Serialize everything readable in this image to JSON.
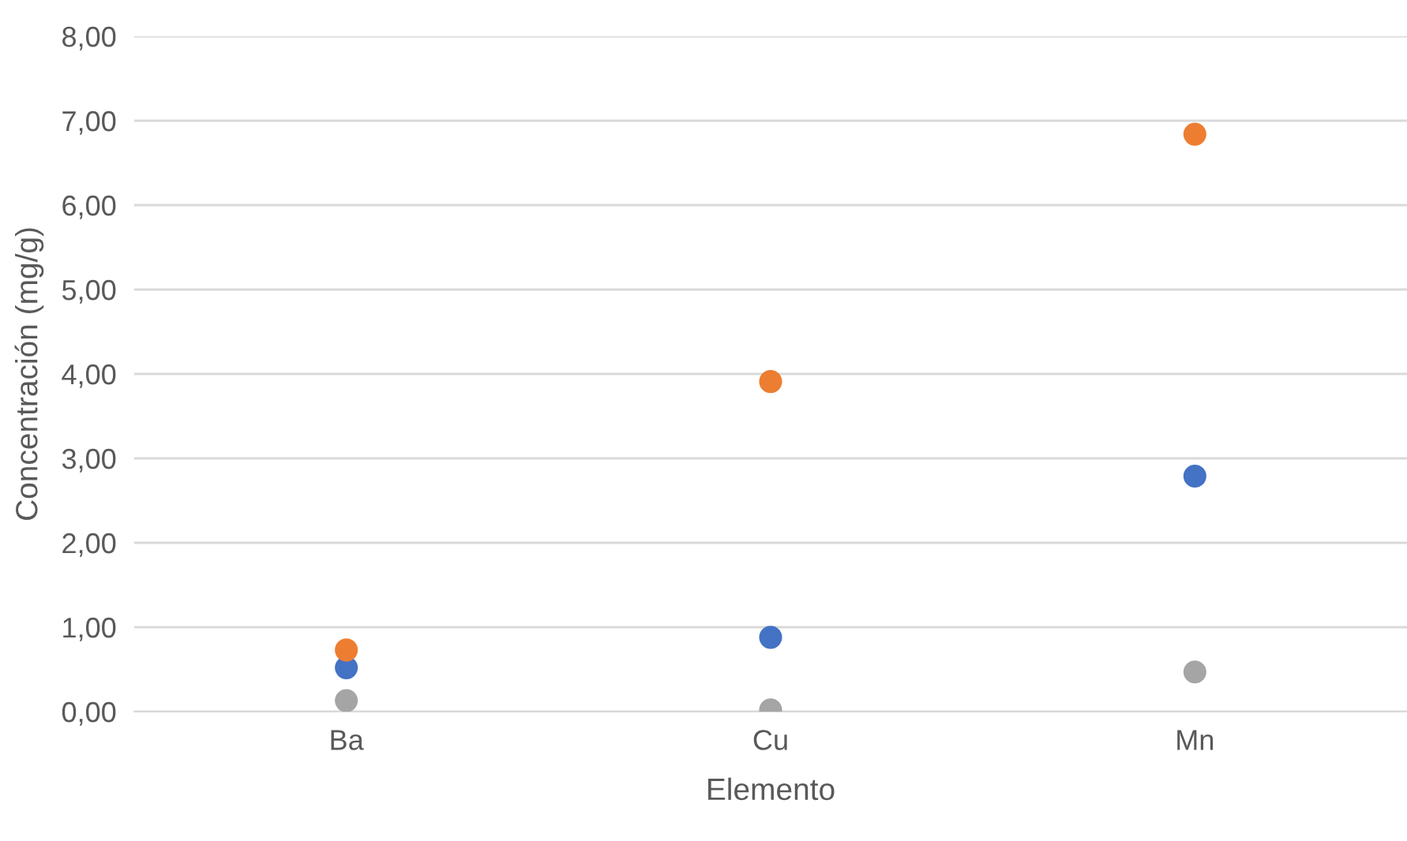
{
  "chart_data": {
    "type": "scatter",
    "xlabel": "Elemento",
    "ylabel": "Concentración (mg/g)",
    "categories": [
      "Ba",
      "Cu",
      "Mn"
    ],
    "series": [
      {
        "color": "#4472c4",
        "values": [
          0.52,
          0.88,
          2.79
        ]
      },
      {
        "color": "#ed7d31",
        "values": [
          0.73,
          3.91,
          6.84
        ]
      },
      {
        "color": "#a5a5a5",
        "values": [
          0.13,
          0.02,
          0.47
        ]
      }
    ],
    "ylim": [
      0,
      8
    ],
    "yticks": [
      {
        "value": 0,
        "label": "0,00"
      },
      {
        "value": 1,
        "label": "1,00"
      },
      {
        "value": 2,
        "label": "2,00"
      },
      {
        "value": 3,
        "label": "3,00"
      },
      {
        "value": 4,
        "label": "4,00"
      },
      {
        "value": 5,
        "label": "5,00"
      },
      {
        "value": 6,
        "label": "6,00"
      },
      {
        "value": 7,
        "label": "7,00"
      },
      {
        "value": 8,
        "label": "8,00"
      }
    ],
    "grid": "y",
    "marker": "circle"
  }
}
